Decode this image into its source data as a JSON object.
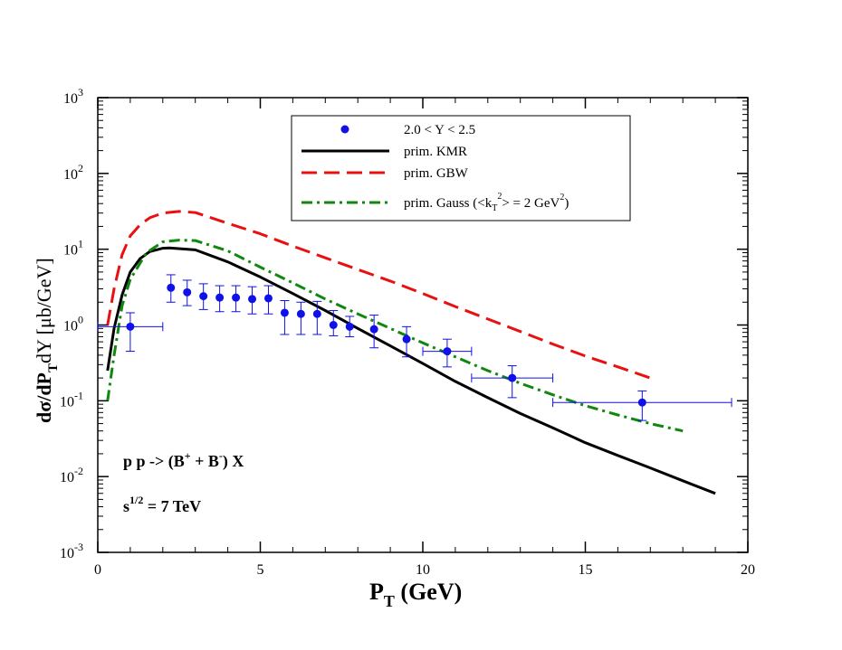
{
  "chart_data": {
    "type": "line",
    "scale": {
      "x": "linear",
      "y": "log"
    },
    "xlim": [
      0,
      20
    ],
    "ylim": [
      0.001,
      1000
    ],
    "x_ticks": [
      0,
      5,
      10,
      15,
      20
    ],
    "y_ticks": [
      {
        "base": "10",
        "exp": "-3",
        "value": 0.001
      },
      {
        "base": "10",
        "exp": "-2",
        "value": 0.01
      },
      {
        "base": "10",
        "exp": "-1",
        "value": 0.1
      },
      {
        "base": "10",
        "exp": "0",
        "value": 1
      },
      {
        "base": "10",
        "exp": "1",
        "value": 10
      },
      {
        "base": "10",
        "exp": "2",
        "value": 100
      },
      {
        "base": "10",
        "exp": "3",
        "value": 1000
      }
    ],
    "xlabel": {
      "main": "P",
      "sub": "T",
      "rest": " (GeV)"
    },
    "ylabel": {
      "p1": "dσ/dP",
      "s1": "T",
      "p2": "dY [μb/GeV]"
    },
    "annotations": {
      "process": {
        "pre": "p p -> (B",
        "sup1": "+",
        "mid": " + B",
        "sup2": "-",
        "post": ") X"
      },
      "energy": {
        "pre": "s",
        "sup": "1/2",
        "post": " = 7 TeV"
      }
    },
    "legend": {
      "data_label": "2.0 < Y < 2.5",
      "kmr_label": "prim. KMR",
      "gbw_label": "prim.  GBW",
      "gauss": {
        "a": "prim. Gauss (<k",
        "b": "T",
        "c": "2",
        "d": "> = 2 GeV",
        "e": "2",
        "f": ")"
      }
    },
    "colors": {
      "data": "#1010e8",
      "kmr": "#000000",
      "gbw": "#e81010",
      "gauss": "#108810"
    },
    "series": [
      {
        "name": "prim. KMR",
        "style": "solid",
        "x": [
          0.3,
          0.5,
          0.75,
          1.0,
          1.3,
          1.6,
          2.0,
          2.2,
          3.0,
          4.0,
          5.0,
          6.0,
          7.0,
          8.0,
          9.0,
          10.0,
          11.0,
          12.0,
          13.0,
          14.0,
          15.0,
          16.0,
          17.0,
          18.0,
          19.0
        ],
        "y": [
          0.25,
          0.9,
          2.5,
          5.0,
          7.5,
          9.3,
          10.3,
          10.4,
          9.8,
          6.8,
          4.3,
          2.6,
          1.55,
          0.9,
          0.53,
          0.31,
          0.18,
          0.11,
          0.068,
          0.044,
          0.028,
          0.019,
          0.013,
          0.0088,
          0.006
        ]
      },
      {
        "name": "prim. GBW",
        "style": "dashed",
        "x": [
          0.3,
          0.5,
          0.75,
          1.0,
          1.3,
          1.6,
          2.0,
          2.5,
          3.0,
          4.0,
          5.0,
          6.0,
          7.0,
          8.0,
          9.0,
          10.0,
          11.0,
          12.0,
          13.0,
          14.0,
          15.0,
          16.0,
          17.0
        ],
        "y": [
          1.0,
          3.0,
          8.5,
          15.0,
          21.0,
          26.0,
          30.0,
          31.5,
          30.5,
          22.0,
          16.0,
          11.0,
          7.7,
          5.4,
          3.8,
          2.6,
          1.75,
          1.2,
          0.82,
          0.56,
          0.39,
          0.28,
          0.2
        ]
      },
      {
        "name": "prim. Gauss (<kT^2> = 2 GeV^2)",
        "style": "dashdot",
        "x": [
          0.3,
          0.5,
          0.75,
          1.0,
          1.5,
          2.0,
          2.5,
          3.0,
          4.0,
          5.0,
          6.0,
          7.0,
          8.0,
          9.0,
          10.0,
          11.0,
          12.0,
          13.0,
          14.0,
          15.0,
          16.0,
          17.0,
          18.0
        ],
        "y": [
          0.1,
          0.4,
          1.8,
          4.0,
          9.0,
          12.5,
          13.2,
          13.0,
          9.5,
          5.8,
          3.6,
          2.2,
          1.4,
          0.9,
          0.58,
          0.38,
          0.25,
          0.17,
          0.12,
          0.086,
          0.065,
          0.05,
          0.04
        ]
      }
    ],
    "data_points": [
      {
        "x": 1.0,
        "xlo": 0.0,
        "xhi": 2.0,
        "y": 0.95,
        "ylo": 0.45,
        "yhi": 1.45
      },
      {
        "x": 2.25,
        "xlo": 2.25,
        "xhi": 2.25,
        "y": 3.1,
        "ylo": 2.0,
        "yhi": 4.6
      },
      {
        "x": 2.75,
        "xlo": 2.75,
        "xhi": 2.75,
        "y": 2.7,
        "ylo": 1.8,
        "yhi": 3.9
      },
      {
        "x": 3.25,
        "xlo": 3.25,
        "xhi": 3.25,
        "y": 2.4,
        "ylo": 1.6,
        "yhi": 3.5
      },
      {
        "x": 3.75,
        "xlo": 3.75,
        "xhi": 3.75,
        "y": 2.3,
        "ylo": 1.5,
        "yhi": 3.3
      },
      {
        "x": 4.25,
        "xlo": 4.25,
        "xhi": 4.25,
        "y": 2.3,
        "ylo": 1.5,
        "yhi": 3.3
      },
      {
        "x": 4.75,
        "xlo": 4.75,
        "xhi": 4.75,
        "y": 2.2,
        "ylo": 1.4,
        "yhi": 3.2
      },
      {
        "x": 5.25,
        "xlo": 5.25,
        "xhi": 5.25,
        "y": 2.25,
        "ylo": 1.4,
        "yhi": 3.3
      },
      {
        "x": 5.75,
        "xlo": 5.75,
        "xhi": 5.75,
        "y": 1.45,
        "ylo": 0.75,
        "yhi": 2.1
      },
      {
        "x": 6.25,
        "xlo": 6.25,
        "xhi": 6.25,
        "y": 1.4,
        "ylo": 0.75,
        "yhi": 2.0
      },
      {
        "x": 6.75,
        "xlo": 6.75,
        "xhi": 6.75,
        "y": 1.4,
        "ylo": 0.75,
        "yhi": 2.05
      },
      {
        "x": 7.25,
        "xlo": 7.25,
        "xhi": 7.25,
        "y": 1.0,
        "ylo": 0.72,
        "yhi": 1.55
      },
      {
        "x": 7.75,
        "xlo": 7.75,
        "xhi": 7.75,
        "y": 0.95,
        "ylo": 0.7,
        "yhi": 1.3
      },
      {
        "x": 8.5,
        "xlo": 8.5,
        "xhi": 8.5,
        "y": 0.88,
        "ylo": 0.5,
        "yhi": 1.35
      },
      {
        "x": 9.5,
        "xlo": 9.5,
        "xhi": 9.5,
        "y": 0.65,
        "ylo": 0.38,
        "yhi": 0.95
      },
      {
        "x": 10.75,
        "xlo": 10.0,
        "xhi": 11.5,
        "y": 0.45,
        "ylo": 0.28,
        "yhi": 0.65
      },
      {
        "x": 12.75,
        "xlo": 11.5,
        "xhi": 14.0,
        "y": 0.2,
        "ylo": 0.11,
        "yhi": 0.29
      },
      {
        "x": 16.75,
        "xlo": 14.0,
        "xhi": 19.5,
        "y": 0.095,
        "ylo": 0.055,
        "yhi": 0.135
      }
    ]
  }
}
